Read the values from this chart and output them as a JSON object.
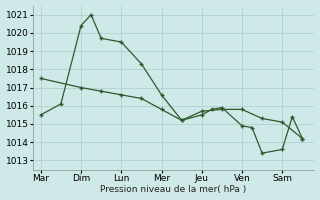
{
  "background_color": "#cfe8e8",
  "grid_color": "#aacccc",
  "line_color": "#2d5a2d",
  "xlabel": "Pression niveau de la mer( hPa )",
  "ylim": [
    1012.5,
    1021.5
  ],
  "yticks": [
    1013,
    1014,
    1015,
    1016,
    1017,
    1018,
    1019,
    1020,
    1021
  ],
  "x_labels": [
    "Mar",
    "Dim",
    "Lun",
    "Mer",
    "Jeu",
    "Ven",
    "Sam"
  ],
  "x_tick_pos": [
    0,
    1,
    2,
    3,
    4,
    5,
    6
  ],
  "xlim": [
    -0.2,
    6.8
  ],
  "line1_x": [
    0.0,
    0.5,
    1.0,
    1.25,
    1.5,
    2.0,
    2.5,
    3.0,
    3.5,
    4.0,
    4.5,
    5.0,
    5.5,
    6.0,
    6.5
  ],
  "line1_y": [
    1015.5,
    1016.1,
    1020.4,
    1021.0,
    1019.7,
    1019.5,
    1018.3,
    1016.6,
    1015.2,
    1015.7,
    1015.8,
    1015.8,
    1015.3,
    1015.1,
    1014.2
  ],
  "line2_x": [
    0.0,
    1.0,
    1.5,
    2.0,
    2.5,
    3.0,
    3.5,
    4.0,
    4.25,
    4.5,
    5.0,
    5.25,
    5.5,
    6.0,
    6.25,
    6.5
  ],
  "line2_y": [
    1017.5,
    1017.0,
    1016.8,
    1016.6,
    1016.4,
    1015.8,
    1015.2,
    1015.5,
    1015.8,
    1015.9,
    1014.9,
    1014.8,
    1013.4,
    1013.6,
    1015.4,
    1014.2
  ]
}
